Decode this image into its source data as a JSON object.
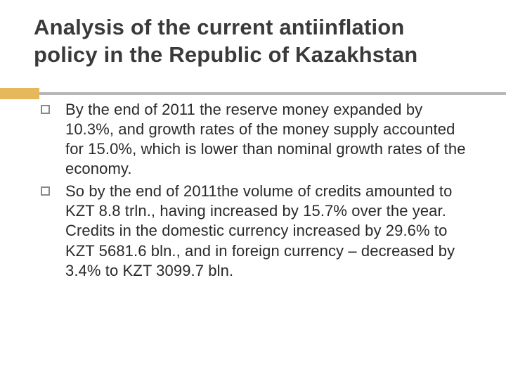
{
  "title": "Analysis of the current antiinflation policy in the Republic of Kazakhstan",
  "accent_color": "#e6b85c",
  "line_color": "#b7b7b7",
  "text_color": "#2a2a2a",
  "title_color": "#3a3a3a",
  "title_fontsize": 31,
  "body_fontsize": 22,
  "bullets": [
    "By the end of 2011 the reserve money expanded by 10.3%, and growth rates of the money supply accounted for 15.0%, which is lower than nominal growth rates of the economy.",
    "So by the end of 2011the volume of credits amounted to KZT 8.8 trln., having increased by 15.7% over the year. Credits in the domestic currency increased by 29.6% to KZT 5681.6 bln., and in foreign currency – decreased by 3.4% to KZT 3099.7 bln."
  ]
}
